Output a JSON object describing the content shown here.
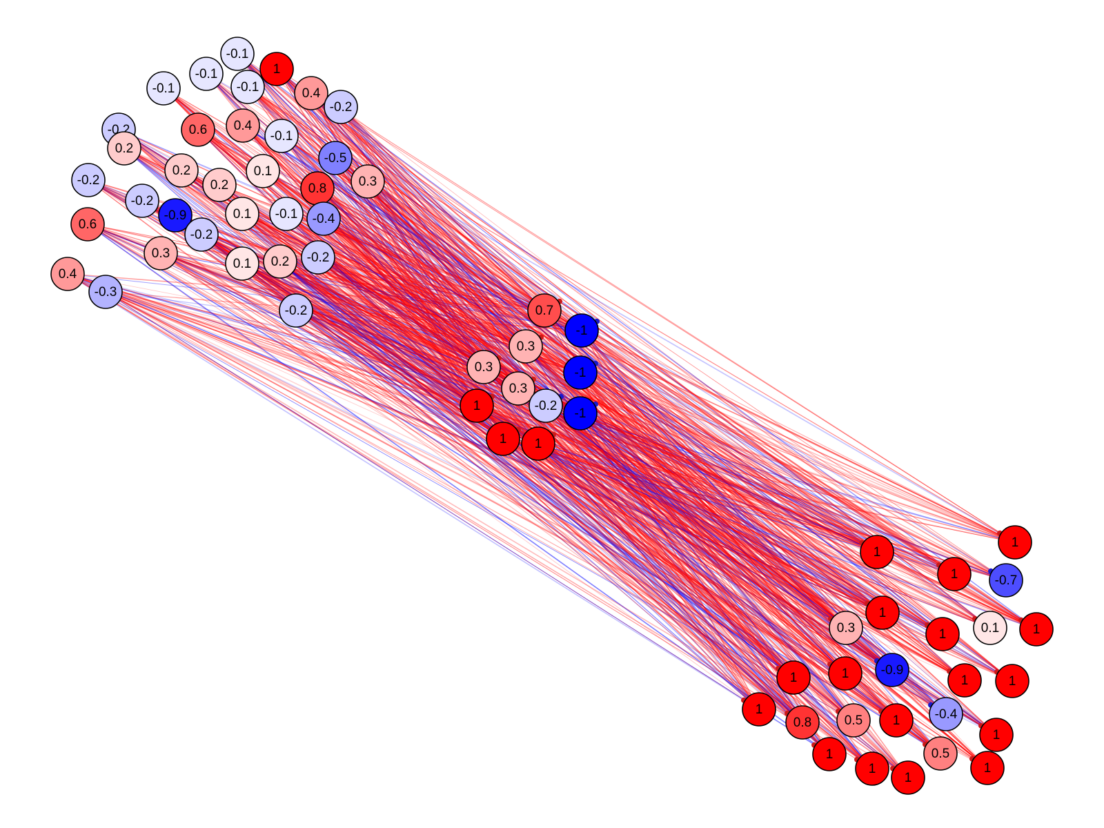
{
  "colors": {
    "positive": "#ff0000",
    "negative": "#0000ff",
    "neutral": "#ffffff",
    "outline": "#000000"
  },
  "nodes": [
    {
      "id": "g1",
      "value": -0.1,
      "label": "-0.1"
    },
    {
      "id": "g2",
      "value": -0.1,
      "label": "-0.1"
    },
    {
      "id": "g3",
      "value": -0.1,
      "label": "-0.1"
    },
    {
      "id": "g4",
      "value": -0.1,
      "label": "-0.1"
    },
    {
      "id": "g5",
      "value": 1,
      "label": "1"
    },
    {
      "id": "g6",
      "value": 0.4,
      "label": "0.4"
    },
    {
      "id": "g7",
      "value": -0.2,
      "label": "-0.2"
    },
    {
      "id": "g8",
      "value": 0.6,
      "label": "0.6"
    },
    {
      "id": "g9",
      "value": 0.4,
      "label": "0.4"
    },
    {
      "id": "g10",
      "value": -0.1,
      "label": "-0.1"
    },
    {
      "id": "g11",
      "value": -0.2,
      "label": "-0.2"
    },
    {
      "id": "g12",
      "value": 0.2,
      "label": "0.2"
    },
    {
      "id": "g13",
      "value": -0.5,
      "label": "-0.5"
    },
    {
      "id": "g14",
      "value": 0.2,
      "label": "0.2"
    },
    {
      "id": "g15",
      "value": 0.1,
      "label": "0.1"
    },
    {
      "id": "g16",
      "value": 0.3,
      "label": "0.3"
    },
    {
      "id": "g17",
      "value": -0.2,
      "label": "-0.2"
    },
    {
      "id": "g18",
      "value": 0.2,
      "label": "0.2"
    },
    {
      "id": "g19",
      "value": 0.8,
      "label": "0.8"
    },
    {
      "id": "g20",
      "value": -0.2,
      "label": "-0.2"
    },
    {
      "id": "g21",
      "value": -0.9,
      "label": "-0.9"
    },
    {
      "id": "g22",
      "value": 0.1,
      "label": "0.1"
    },
    {
      "id": "g23",
      "value": -0.1,
      "label": "-0.1"
    },
    {
      "id": "g24",
      "value": -0.4,
      "label": "-0.4"
    },
    {
      "id": "g25",
      "value": 0.6,
      "label": "0.6"
    },
    {
      "id": "g26",
      "value": -0.2,
      "label": "-0.2"
    },
    {
      "id": "g27",
      "value": 0.3,
      "label": "0.3"
    },
    {
      "id": "g28",
      "value": 0.1,
      "label": "0.1"
    },
    {
      "id": "g29",
      "value": 0.2,
      "label": "0.2"
    },
    {
      "id": "g30",
      "value": -0.2,
      "label": "-0.2"
    },
    {
      "id": "g31",
      "value": 0.4,
      "label": "0.4"
    },
    {
      "id": "g32",
      "value": -0.3,
      "label": "-0.3"
    },
    {
      "id": "g33",
      "value": -0.2,
      "label": "-0.2"
    },
    {
      "id": "m1",
      "value": 0.7,
      "label": "0.7"
    },
    {
      "id": "m2",
      "value": -1,
      "label": "-1"
    },
    {
      "id": "m3",
      "value": 0.3,
      "label": "0.3"
    },
    {
      "id": "m4",
      "value": 0.3,
      "label": "0.3"
    },
    {
      "id": "m5",
      "value": -1,
      "label": "-1"
    },
    {
      "id": "m6",
      "value": 0.3,
      "label": "0.3"
    },
    {
      "id": "m7",
      "value": -0.2,
      "label": "-0.2"
    },
    {
      "id": "m8",
      "value": -1,
      "label": "-1"
    },
    {
      "id": "m9",
      "value": 1,
      "label": "1"
    },
    {
      "id": "m10",
      "value": 1,
      "label": "1"
    },
    {
      "id": "m11",
      "value": 1,
      "label": "1"
    },
    {
      "id": "o1",
      "value": 1,
      "label": "1"
    },
    {
      "id": "o2",
      "value": 1,
      "label": "1"
    },
    {
      "id": "o3",
      "value": 1,
      "label": "1"
    },
    {
      "id": "o4",
      "value": -0.7,
      "label": "-0.7"
    },
    {
      "id": "o5",
      "value": 1,
      "label": "1"
    },
    {
      "id": "o6",
      "value": 0.3,
      "label": "0.3"
    },
    {
      "id": "o7",
      "value": 1,
      "label": "1"
    },
    {
      "id": "o8",
      "value": 0.1,
      "label": "0.1"
    },
    {
      "id": "o9",
      "value": 1,
      "label": "1"
    },
    {
      "id": "o10",
      "value": 1,
      "label": "1"
    },
    {
      "id": "o11",
      "value": -0.9,
      "label": "-0.9"
    },
    {
      "id": "o12",
      "value": 1,
      "label": "1"
    },
    {
      "id": "o13",
      "value": 1,
      "label": "1"
    },
    {
      "id": "o14",
      "value": 1,
      "label": "1"
    },
    {
      "id": "o15",
      "value": 1,
      "label": "1"
    },
    {
      "id": "o16",
      "value": -0.4,
      "label": "-0.4"
    },
    {
      "id": "o17",
      "value": 0.8,
      "label": "0.8"
    },
    {
      "id": "o18",
      "value": 0.5,
      "label": "0.5"
    },
    {
      "id": "o19",
      "value": 1,
      "label": "1"
    },
    {
      "id": "o20",
      "value": 1,
      "label": "1"
    },
    {
      "id": "o21",
      "value": 1,
      "label": "1"
    },
    {
      "id": "o22",
      "value": 0.5,
      "label": "0.5"
    },
    {
      "id": "o23",
      "value": 1,
      "label": "1"
    },
    {
      "id": "o24",
      "value": 1,
      "label": "1"
    },
    {
      "id": "o25",
      "value": 1,
      "label": "1"
    }
  ]
}
